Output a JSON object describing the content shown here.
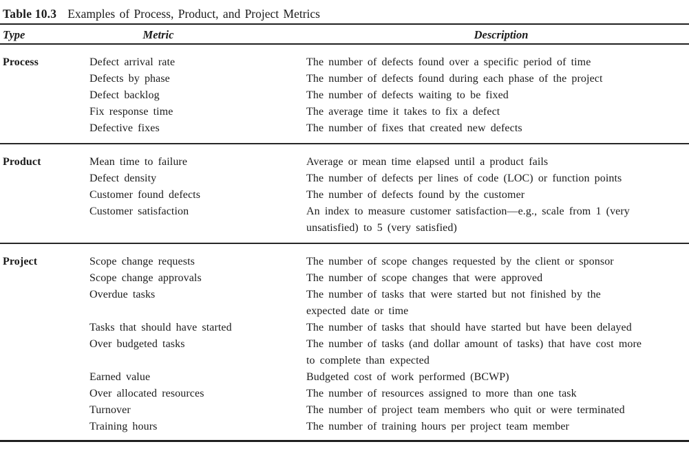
{
  "table": {
    "label": "Table 10.3",
    "title": "Examples of Process, Product, and Project Metrics",
    "columns": {
      "type": "Type",
      "metric": "Metric",
      "description": "Description"
    },
    "text_color": "#1b1b1b",
    "rule_color": "#1f1f1f",
    "sections": [
      {
        "type": "Process",
        "rows": [
          {
            "metric": "Defect arrival rate",
            "description": "The number of defects found over a specific period of time"
          },
          {
            "metric": "Defects by phase",
            "description": "The number of defects found during each phase of the project"
          },
          {
            "metric": "Defect backlog",
            "description": "The number of defects waiting to be fixed"
          },
          {
            "metric": "Fix response time",
            "description": "The average time it takes to fix a defect"
          },
          {
            "metric": "Defective fixes",
            "description": "The number of fixes that created new defects"
          }
        ]
      },
      {
        "type": "Product",
        "rows": [
          {
            "metric": "Mean time to failure",
            "description": "Average or mean time elapsed until a product fails"
          },
          {
            "metric": "Defect density",
            "description": "The number of defects per lines of code (LOC) or function points"
          },
          {
            "metric": "Customer found defects",
            "description": "The number of defects found by the customer"
          },
          {
            "metric": "Customer satisfaction",
            "description": "An index to measure customer satisfaction—e.g., scale from 1 (very\nunsatisfied) to 5 (very satisfied)"
          }
        ]
      },
      {
        "type": "Project",
        "rows": [
          {
            "metric": "Scope change requests",
            "description": "The number of scope changes requested by the client or sponsor"
          },
          {
            "metric": "Scope change approvals",
            "description": "The number of scope changes that were approved"
          },
          {
            "metric": "Overdue tasks",
            "description": "The number of tasks that were started but not finished by the\nexpected date or time"
          },
          {
            "metric": "Tasks that should have started",
            "description": "The number of tasks that should have started but have been delayed"
          },
          {
            "metric": "Over budgeted tasks",
            "description": "The number of tasks (and dollar amount of tasks) that have cost more\nto complete than expected"
          },
          {
            "metric": "Earned value",
            "description": "Budgeted cost of work performed (BCWP)"
          },
          {
            "metric": "Over allocated resources",
            "description": "The number of resources assigned to more than one task"
          },
          {
            "metric": "Turnover",
            "description": "The number of project team members who quit or were terminated"
          },
          {
            "metric": "Training hours",
            "description": "The number of training hours per project team member"
          }
        ]
      }
    ]
  }
}
